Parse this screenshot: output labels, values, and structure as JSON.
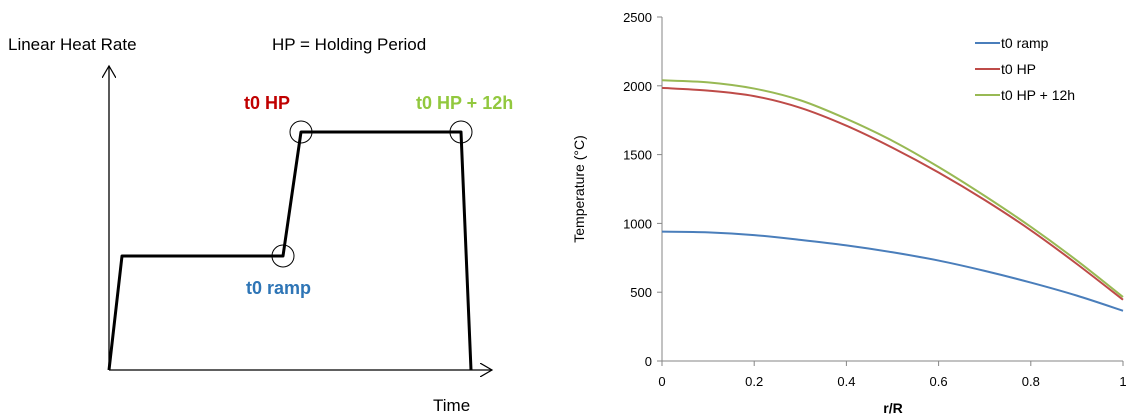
{
  "left_diagram": {
    "y_axis_label": "Linear Heat Rate",
    "x_axis_label": "Time",
    "legend_note": "HP = Holding Period",
    "markers": [
      {
        "id": "ramp",
        "label": "t0 ramp",
        "color": "#2e75b6"
      },
      {
        "id": "hp",
        "label": "t0 HP",
        "color": "#c00000"
      },
      {
        "id": "hp12",
        "label": "t0 HP + 12h",
        "color": "#92c83e"
      }
    ]
  },
  "chart_data": {
    "type": "line",
    "title": "",
    "xlabel": "r/R",
    "ylabel": "Temperature (°C)",
    "xlim": [
      0,
      1
    ],
    "ylim": [
      0,
      2500
    ],
    "xticks": [
      "0",
      "0.2",
      "0.4",
      "0.6",
      "0.8",
      "1"
    ],
    "yticks": [
      "0",
      "500",
      "1000",
      "1500",
      "2000",
      "2500"
    ],
    "legend_position": "top-right",
    "grid": false,
    "x": [
      0,
      0.1,
      0.2,
      0.3,
      0.4,
      0.5,
      0.6,
      0.7,
      0.8,
      0.9,
      1.0
    ],
    "series": [
      {
        "name": "t0 ramp",
        "color": "#4a7ebb",
        "values": [
          940,
          935,
          915,
          880,
          840,
          790,
          730,
          655,
          570,
          475,
          365
        ]
      },
      {
        "name": "t0 HP",
        "color": "#be4b48",
        "values": [
          1985,
          1965,
          1925,
          1840,
          1710,
          1550,
          1370,
          1170,
          950,
          705,
          445
        ]
      },
      {
        "name": "t0 HP + 12h",
        "color": "#98b954",
        "values": [
          2040,
          2025,
          1980,
          1895,
          1760,
          1600,
          1410,
          1200,
          975,
          730,
          465
        ]
      }
    ]
  }
}
